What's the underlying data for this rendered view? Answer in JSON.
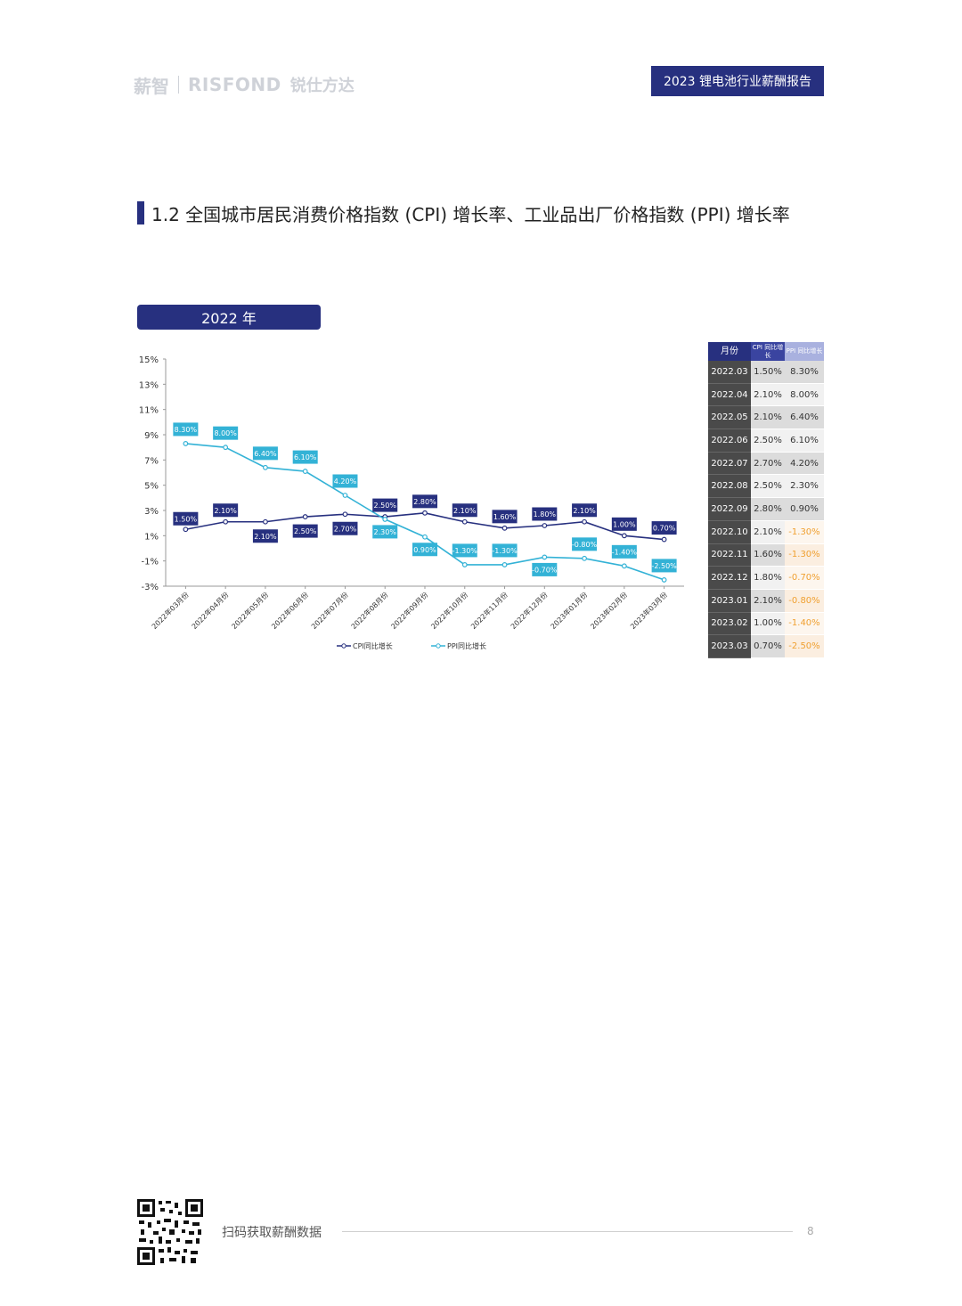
{
  "header": {
    "logo_brand1": "薪智",
    "logo_brand2": "RISFOND",
    "logo_brand3": "锐仕方达",
    "report_title": "2023 锂电池行业薪酬报告"
  },
  "section": {
    "title": "1.2 全国城市居民消费价格指数 (CPI) 增长率、工业品出厂价格指数 (PPI) 增长率"
  },
  "year_tab": "2022 年",
  "chart_data": {
    "type": "line",
    "categories": [
      "2022年03月份",
      "2022年04月份",
      "2022年05月份",
      "2022年06月份",
      "2022年07月份",
      "2022年08月份",
      "2022年09月份",
      "2022年10月份",
      "2022年11月份",
      "2022年12月份",
      "2023年01月份",
      "2023年02月份",
      "2023年03月份"
    ],
    "series": [
      {
        "name": "CPI同比增长",
        "values": [
          1.5,
          2.1,
          2.1,
          2.5,
          2.7,
          2.5,
          2.8,
          2.1,
          1.6,
          1.8,
          2.1,
          1.0,
          0.7
        ],
        "labels": [
          "1.50%",
          "2.10%",
          "2.10%",
          "2.50%",
          "2.70%",
          "2.50%",
          "2.80%",
          "2.10%",
          "1.60%",
          "1.80%",
          "2.10%",
          "1.00%",
          "0.70%"
        ],
        "color": "#27307f"
      },
      {
        "name": "PPI同比增长",
        "values": [
          8.3,
          8.0,
          6.4,
          6.1,
          4.2,
          2.3,
          0.9,
          -1.3,
          -1.3,
          -0.7,
          -0.8,
          -1.4,
          -2.5
        ],
        "labels": [
          "8.30%",
          "8.00%",
          "6.40%",
          "6.10%",
          "4.20%",
          "2.30%",
          "0.90%",
          "-1.30%",
          "-1.30%",
          "-0.70%",
          "-0.80%",
          "-1.40%",
          "-2.50%"
        ],
        "color": "#33b2d6"
      }
    ],
    "y_ticks": [
      "15%",
      "13%",
      "11%",
      "9%",
      "7%",
      "5%",
      "3%",
      "1%",
      "-1%",
      "-3%"
    ],
    "ylim": [
      -3,
      15
    ],
    "legend_position": "bottom"
  },
  "table": {
    "headers": {
      "month": "月份",
      "cpi": "CPI 同比增长",
      "ppi": "PPI 同比增长"
    },
    "rows": [
      {
        "month": "2022.03",
        "cpi": "1.50%",
        "ppi": "8.30%"
      },
      {
        "month": "2022.04",
        "cpi": "2.10%",
        "ppi": "8.00%"
      },
      {
        "month": "2022.05",
        "cpi": "2.10%",
        "ppi": "6.40%"
      },
      {
        "month": "2022.06",
        "cpi": "2.50%",
        "ppi": "6.10%"
      },
      {
        "month": "2022.07",
        "cpi": "2.70%",
        "ppi": "4.20%"
      },
      {
        "month": "2022.08",
        "cpi": "2.50%",
        "ppi": "2.30%"
      },
      {
        "month": "2022.09",
        "cpi": "2.80%",
        "ppi": "0.90%"
      },
      {
        "month": "2022.10",
        "cpi": "2.10%",
        "ppi": "-1.30%"
      },
      {
        "month": "2022.11",
        "cpi": "1.60%",
        "ppi": "-1.30%"
      },
      {
        "month": "2022.12",
        "cpi": "1.80%",
        "ppi": "-0.70%"
      },
      {
        "month": "2023.01",
        "cpi": "2.10%",
        "ppi": "-0.80%"
      },
      {
        "month": "2023.02",
        "cpi": "1.00%",
        "ppi": "-1.40%"
      },
      {
        "month": "2023.03",
        "cpi": "0.70%",
        "ppi": "-2.50%"
      }
    ],
    "negative_color": "#f0a030"
  },
  "footer": {
    "text": "扫码获取薪酬数据",
    "page": "8"
  }
}
